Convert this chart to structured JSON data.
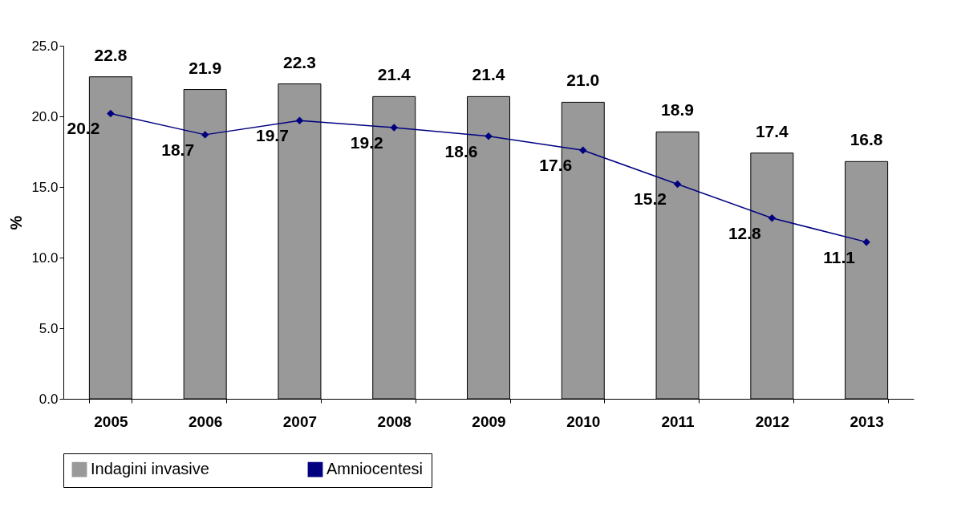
{
  "chart_data": {
    "type": "bar",
    "ylabel": "%",
    "categories": [
      "2005",
      "2006",
      "2007",
      "2008",
      "2009",
      "2010",
      "2011",
      "2012",
      "2013"
    ],
    "series": [
      {
        "name": "Indagini invasive",
        "color": "#999999",
        "values": [
          22.8,
          21.9,
          22.3,
          21.4,
          21.4,
          21.0,
          18.9,
          17.4,
          16.8
        ],
        "value_labels": [
          "22.8",
          "21.9",
          "22.3",
          "21.4",
          "21.4",
          "21.0",
          "18.9",
          "17.4",
          "16.8"
        ]
      },
      {
        "name": "Amniocentesi",
        "type": "line",
        "color": "#000080",
        "values": [
          20.2,
          18.7,
          19.7,
          19.2,
          18.6,
          17.6,
          15.2,
          12.8,
          11.1
        ],
        "value_labels": [
          "20.2",
          "18.7",
          "19.7",
          "19.2",
          "18.6",
          "17.6",
          "15.2",
          "12.8",
          "11.1"
        ]
      }
    ],
    "ylim": [
      0,
      25
    ],
    "yticks": [
      {
        "value": 0,
        "label": "0.0"
      },
      {
        "value": 5,
        "label": "5.0"
      },
      {
        "value": 10,
        "label": "10.0"
      },
      {
        "value": 15,
        "label": "15.0"
      },
      {
        "value": 20,
        "label": "20.0"
      },
      {
        "value": 25,
        "label": "25.0"
      }
    ],
    "grid": false,
    "legend": "bottom",
    "marker": "diamond",
    "line_style": "solid"
  }
}
